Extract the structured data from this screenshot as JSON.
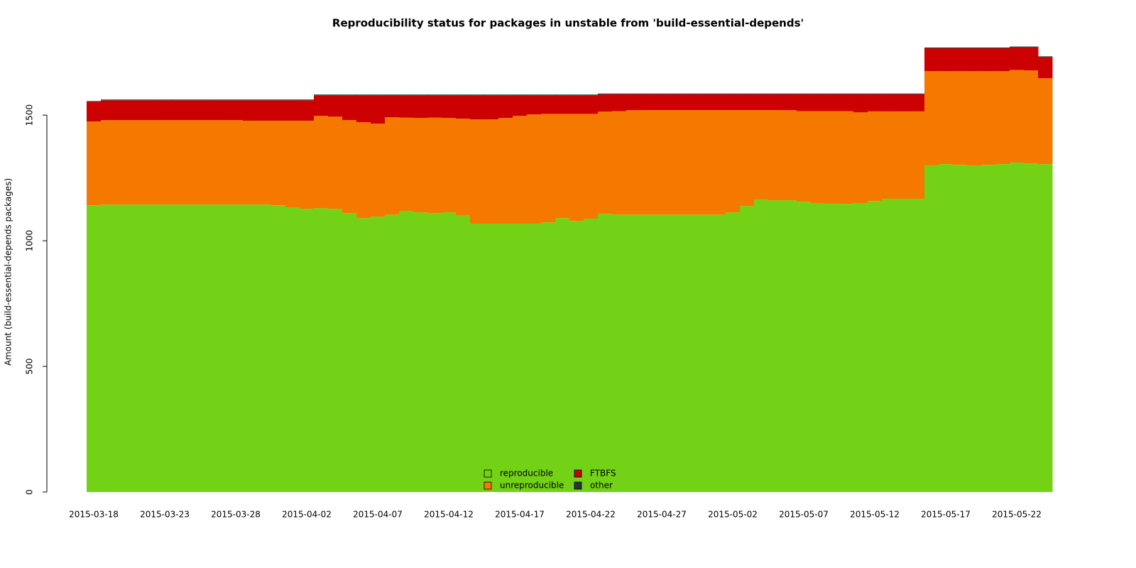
{
  "chart_data": {
    "type": "stacked_step_area",
    "title": "Reproducibility status for packages in unstable from 'build-essential-depends'",
    "ylabel": "Amount (build-essential-depends packages)",
    "categories": [
      "2015-03-18",
      null,
      null,
      null,
      null,
      "2015-03-23",
      null,
      null,
      null,
      null,
      "2015-03-28",
      null,
      null,
      null,
      null,
      "2015-04-02",
      null,
      null,
      null,
      null,
      "2015-04-07",
      null,
      null,
      null,
      null,
      "2015-04-12",
      null,
      null,
      null,
      null,
      "2015-04-17",
      null,
      null,
      null,
      null,
      "2015-04-22",
      null,
      null,
      null,
      null,
      "2015-04-27",
      null,
      null,
      null,
      null,
      "2015-05-02",
      null,
      null,
      null,
      null,
      "2015-05-07",
      null,
      null,
      null,
      null,
      "2015-05-12",
      null,
      null,
      null,
      null,
      "2015-05-17",
      null,
      null,
      null,
      null,
      "2015-05-22",
      null,
      null
    ],
    "ylim": [
      0,
      1800
    ],
    "yticks": [
      0,
      500,
      1000,
      1500
    ],
    "legend": "bottom",
    "series": [
      {
        "name": "reproducible",
        "color": "#73d216",
        "values": [
          1141,
          1144,
          1144,
          1144,
          1144,
          1144,
          1144,
          1144,
          1144,
          1144,
          1144,
          1144,
          1144,
          1141,
          1133,
          1127,
          1130,
          1127,
          1110,
          1090,
          1096,
          1104,
          1119,
          1113,
          1110,
          1113,
          1102,
          1068,
          1068,
          1068,
          1068,
          1068,
          1073,
          1090,
          1079,
          1088,
          1107,
          1104,
          1104,
          1104,
          1104,
          1104,
          1104,
          1104,
          1104,
          1113,
          1138,
          1164,
          1161,
          1161,
          1155,
          1150,
          1147,
          1147,
          1150,
          1158,
          1167,
          1167,
          1167,
          1300,
          1305,
          1302,
          1299,
          1302,
          1305,
          1311,
          1308,
          1305
        ]
      },
      {
        "name": "unreproducible",
        "color": "#f57900",
        "values": [
          334,
          336,
          336,
          336,
          336,
          336,
          336,
          336,
          336,
          336,
          336,
          334,
          334,
          337,
          345,
          351,
          367,
          367,
          370,
          382,
          370,
          388,
          371,
          376,
          380,
          376,
          384,
          415,
          415,
          421,
          429,
          435,
          432,
          415,
          426,
          417,
          407,
          412,
          416,
          416,
          416,
          416,
          416,
          416,
          416,
          407,
          382,
          356,
          359,
          359,
          361,
          366,
          369,
          369,
          361,
          357,
          348,
          348,
          348,
          375,
          370,
          373,
          376,
          373,
          370,
          369,
          370,
          342
        ]
      },
      {
        "name": "FTBFS",
        "color": "#cc0000",
        "values": [
          79,
          79,
          79,
          79,
          79,
          79,
          79,
          79,
          79,
          79,
          79,
          81,
          81,
          81,
          81,
          81,
          82,
          85,
          99,
          107,
          113,
          87,
          89,
          90,
          89,
          90,
          93,
          96,
          96,
          90,
          82,
          76,
          74,
          74,
          74,
          74,
          69,
          67,
          63,
          63,
          63,
          63,
          63,
          63,
          63,
          63,
          63,
          63,
          63,
          63,
          67,
          67,
          67,
          67,
          72,
          68,
          68,
          68,
          68,
          91,
          91,
          91,
          91,
          91,
          91,
          90,
          92,
          84
        ]
      },
      {
        "name": "other",
        "color": "#2e3436",
        "values": [
          2,
          3,
          3,
          3,
          3,
          3,
          3,
          3,
          3,
          3,
          3,
          3,
          3,
          3,
          3,
          3,
          3,
          3,
          3,
          3,
          3,
          3,
          3,
          3,
          3,
          3,
          3,
          3,
          3,
          3,
          3,
          3,
          3,
          3,
          3,
          3,
          3,
          3,
          3,
          3,
          3,
          3,
          3,
          3,
          3,
          3,
          3,
          3,
          3,
          3,
          3,
          3,
          3,
          3,
          3,
          3,
          3,
          3,
          3,
          3,
          3,
          3,
          3,
          3,
          3,
          3,
          3,
          3
        ]
      }
    ]
  }
}
